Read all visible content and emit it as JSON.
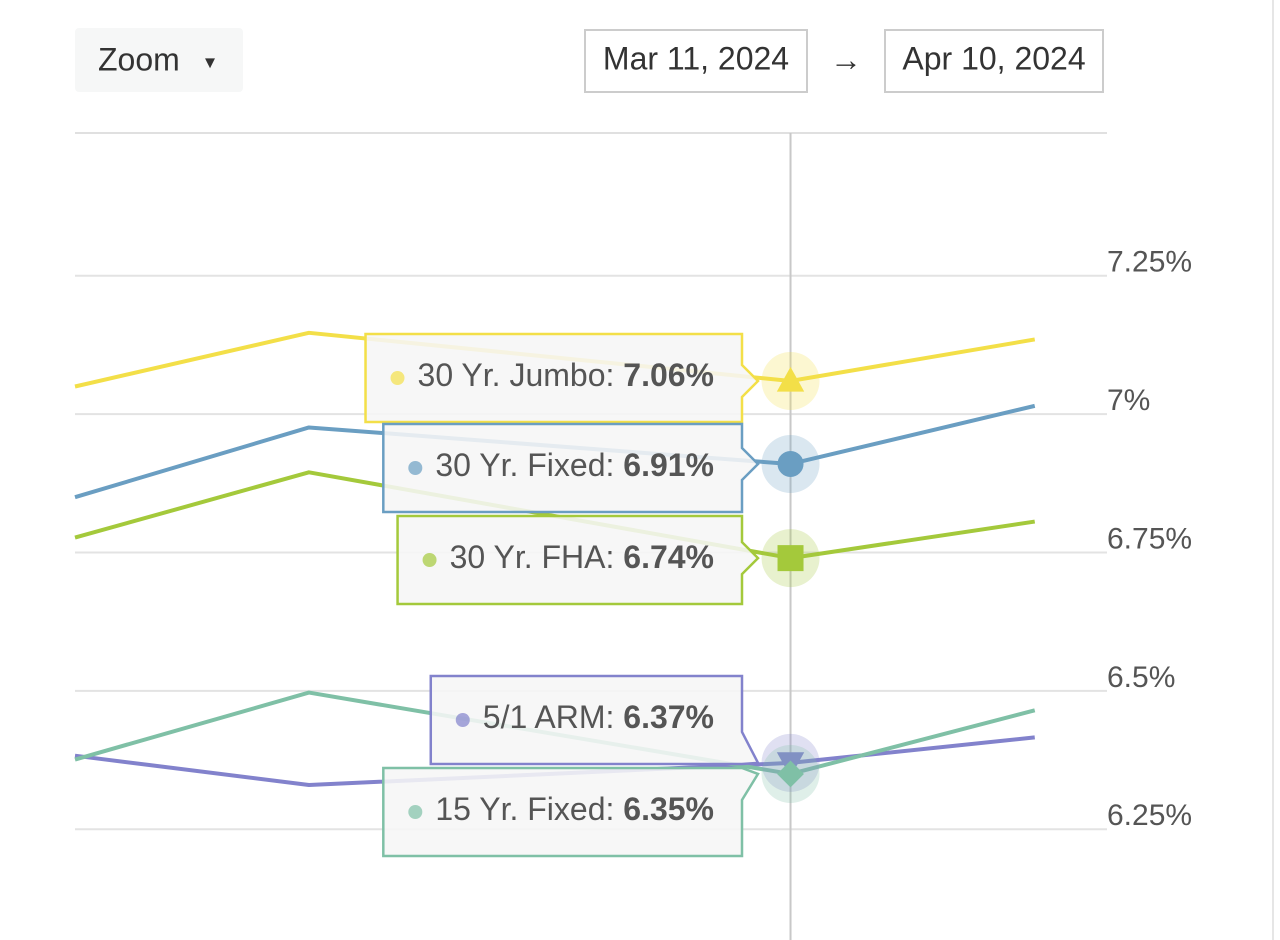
{
  "ui": {
    "zoom": "Zoom",
    "zoom_caret": "▾",
    "range_start": "Mar 11, 2024",
    "range_arrow": "→",
    "range_end": "Apr 10, 2024"
  },
  "chart_data": {
    "type": "line",
    "x": [
      0,
      6.8,
      20.8,
      27.9
    ],
    "xlim": [
      0,
      30
    ],
    "ylim": [
      6.05,
      7.508
    ],
    "yticks": [
      {
        "value": 6.25,
        "label": "6.25%"
      },
      {
        "value": 6.5,
        "label": "6.5%"
      },
      {
        "value": 6.75,
        "label": "6.75%"
      },
      {
        "value": 7,
        "label": "7%"
      },
      {
        "value": 7.25,
        "label": "7.25%"
      }
    ],
    "grid": true,
    "hover_index": 2,
    "name_separator": ":",
    "series": [
      {
        "name": "30 Yr. Jumbo",
        "color": "#f3df48",
        "marker": "triangle",
        "values": [
          7.05,
          7.147,
          7.06,
          7.135
        ],
        "value_labels": [
          null,
          null,
          "7.06%",
          null
        ]
      },
      {
        "name": "30 Yr. Fixed",
        "color": "#6a9ec2",
        "marker": "circle",
        "values": [
          6.85,
          6.976,
          6.91,
          7.015
        ],
        "value_labels": [
          null,
          null,
          "6.91%",
          null
        ]
      },
      {
        "name": "30 Yr. FHA",
        "color": "#a4c93b",
        "marker": "square",
        "values": [
          6.777,
          6.895,
          6.74,
          6.806
        ],
        "value_labels": [
          null,
          null,
          "6.74%",
          null
        ]
      },
      {
        "name": "5/1 ARM",
        "color": "#8282cc",
        "marker": "triangle-down",
        "values": [
          6.383,
          6.33,
          6.37,
          6.416
        ],
        "value_labels": [
          null,
          null,
          "6.37%",
          null
        ]
      },
      {
        "name": "15 Yr. Fixed",
        "color": "#7fc0a6",
        "marker": "diamond",
        "values": [
          6.376,
          6.497,
          6.35,
          6.465
        ],
        "value_labels": [
          null,
          null,
          "6.35%",
          null
        ]
      }
    ]
  }
}
